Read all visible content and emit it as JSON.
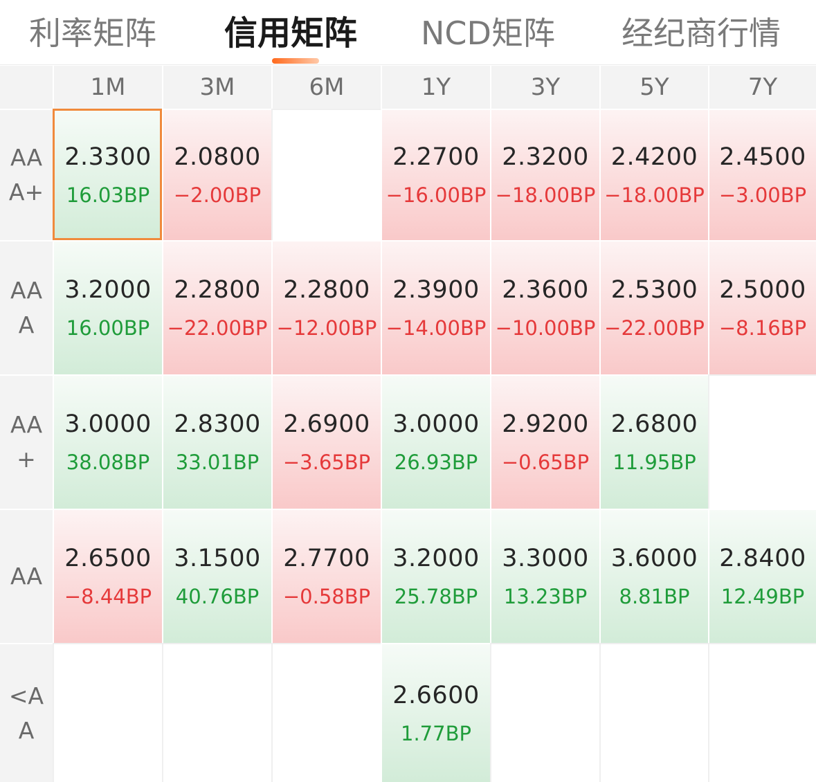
{
  "tabs": [
    {
      "label": "利率矩阵",
      "active": false
    },
    {
      "label": "信用矩阵",
      "active": true
    },
    {
      "label": "NCD矩阵",
      "active": false
    },
    {
      "label": "经纪商行情",
      "active": false
    }
  ],
  "colors": {
    "accent": "#ff6a1e",
    "up_text": "#1f9c3a",
    "down_text": "#e5393a",
    "selected_border": "#f08a3c"
  },
  "matrix": {
    "columns": [
      "1M",
      "3M",
      "6M",
      "1Y",
      "3Y",
      "5Y",
      "7Y"
    ],
    "rows": [
      {
        "label_lines": [
          "AA",
          "A+"
        ],
        "cells": [
          {
            "rate": "2.3300",
            "bp": "16.03BP",
            "dir": "up",
            "selected": true
          },
          {
            "rate": "2.0800",
            "bp": "−2.00BP",
            "dir": "down"
          },
          null,
          {
            "rate": "2.2700",
            "bp": "−16.00BP",
            "dir": "down"
          },
          {
            "rate": "2.3200",
            "bp": "−18.00BP",
            "dir": "down"
          },
          {
            "rate": "2.4200",
            "bp": "−18.00BP",
            "dir": "down"
          },
          {
            "rate": "2.4500",
            "bp": "−3.00BP",
            "dir": "down"
          }
        ]
      },
      {
        "label_lines": [
          "AA",
          "A"
        ],
        "cells": [
          {
            "rate": "3.2000",
            "bp": "16.00BP",
            "dir": "up"
          },
          {
            "rate": "2.2800",
            "bp": "−22.00BP",
            "dir": "down"
          },
          {
            "rate": "2.2800",
            "bp": "−12.00BP",
            "dir": "down"
          },
          {
            "rate": "2.3900",
            "bp": "−14.00BP",
            "dir": "down"
          },
          {
            "rate": "2.3600",
            "bp": "−10.00BP",
            "dir": "down"
          },
          {
            "rate": "2.5300",
            "bp": "−22.00BP",
            "dir": "down"
          },
          {
            "rate": "2.5000",
            "bp": "−8.16BP",
            "dir": "down"
          }
        ]
      },
      {
        "label_lines": [
          "AA",
          "+"
        ],
        "cells": [
          {
            "rate": "3.0000",
            "bp": "38.08BP",
            "dir": "up"
          },
          {
            "rate": "2.8300",
            "bp": "33.01BP",
            "dir": "up"
          },
          {
            "rate": "2.6900",
            "bp": "−3.65BP",
            "dir": "down"
          },
          {
            "rate": "3.0000",
            "bp": "26.93BP",
            "dir": "up"
          },
          {
            "rate": "2.9200",
            "bp": "−0.65BP",
            "dir": "down"
          },
          {
            "rate": "2.6800",
            "bp": "11.95BP",
            "dir": "up"
          },
          null
        ]
      },
      {
        "label_lines": [
          "AA"
        ],
        "cells": [
          {
            "rate": "2.6500",
            "bp": "−8.44BP",
            "dir": "down"
          },
          {
            "rate": "3.1500",
            "bp": "40.76BP",
            "dir": "up"
          },
          {
            "rate": "2.7700",
            "bp": "−0.58BP",
            "dir": "down"
          },
          {
            "rate": "3.2000",
            "bp": "25.78BP",
            "dir": "up"
          },
          {
            "rate": "3.3000",
            "bp": "13.23BP",
            "dir": "up"
          },
          {
            "rate": "3.6000",
            "bp": "8.81BP",
            "dir": "up"
          },
          {
            "rate": "2.8400",
            "bp": "12.49BP",
            "dir": "up"
          }
        ]
      },
      {
        "label_lines": [
          "<A",
          "A"
        ],
        "cells": [
          null,
          null,
          null,
          {
            "rate": "2.6600",
            "bp": "1.77BP",
            "dir": "up"
          },
          null,
          null,
          null
        ]
      }
    ]
  }
}
